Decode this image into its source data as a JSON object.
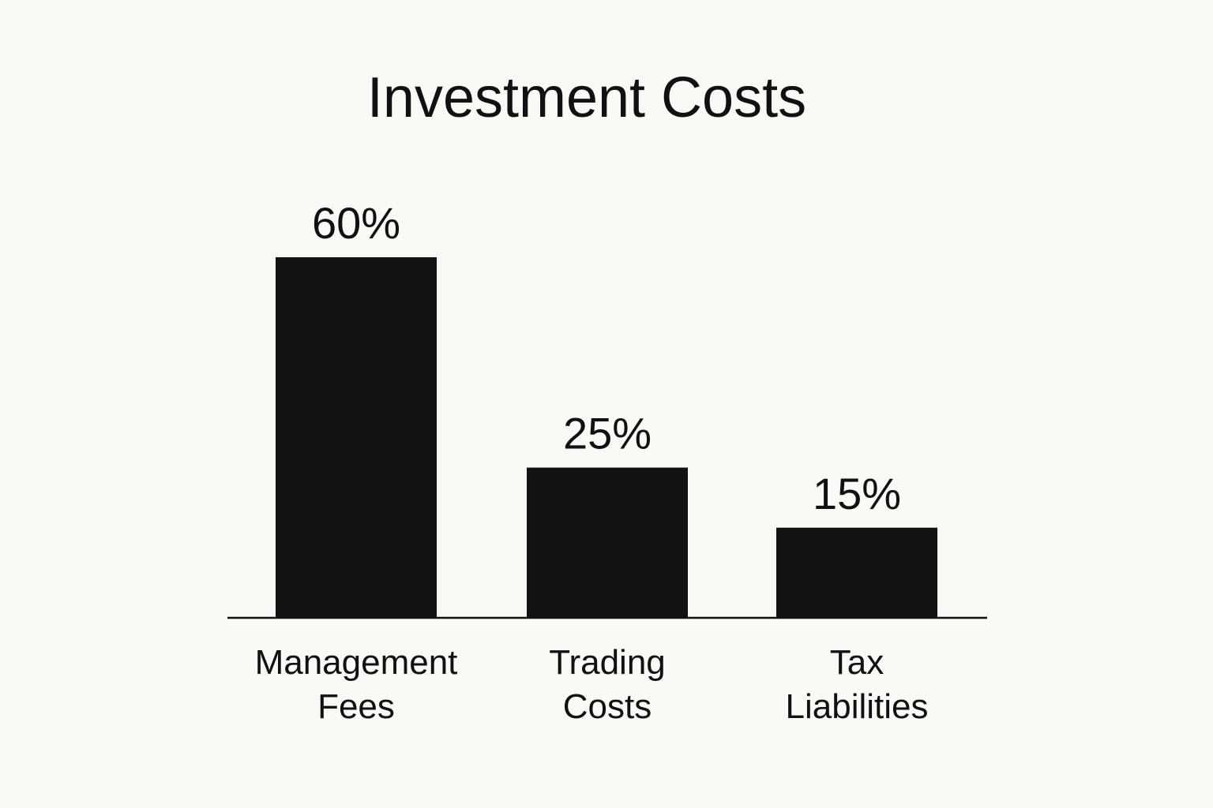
{
  "chart_data": {
    "type": "bar",
    "title": "Investment Costs",
    "categories": [
      [
        "Management",
        "Fees"
      ],
      [
        "Trading",
        "Costs"
      ],
      [
        "Tax",
        "Liabilities"
      ]
    ],
    "values": [
      60,
      25,
      15
    ],
    "value_labels": [
      "60%",
      "25%",
      "15%"
    ],
    "ylim": [
      0,
      60
    ],
    "grid": false,
    "legend": "none",
    "bar_color": "#121212",
    "axis_color": "#111111",
    "background_color": "#faf9f5"
  }
}
